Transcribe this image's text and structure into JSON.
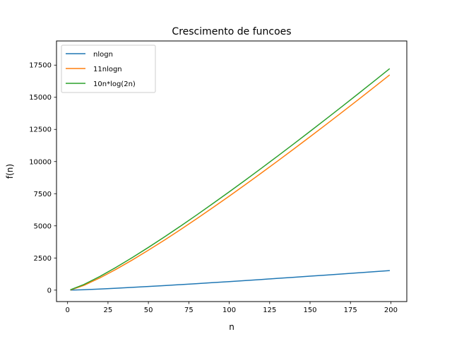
{
  "chart_data": {
    "type": "line",
    "title": "Crescimento de funcoes",
    "xlabel": "n",
    "ylabel": "f(n)",
    "xlim": [
      -6.85,
      209.85
    ],
    "ylim": [
      -890,
      19380
    ],
    "xticks": [
      0,
      25,
      50,
      75,
      100,
      125,
      150,
      175,
      200
    ],
    "yticks": [
      0,
      2500,
      5000,
      7500,
      10000,
      12500,
      15000,
      17500
    ],
    "grid": false,
    "legend_position": "top-left",
    "x": [
      2,
      10,
      20,
      30,
      40,
      50,
      60,
      70,
      80,
      90,
      100,
      110,
      120,
      130,
      140,
      150,
      160,
      170,
      180,
      190,
      199
    ],
    "series": [
      {
        "name": "nlogn",
        "color": "#1f77b4",
        "values": [
          2,
          33,
          86,
          147,
          213,
          282,
          354,
          429,
          506,
          584,
          664,
          746,
          829,
          913,
          998,
          1084,
          1171,
          1260,
          1349,
          1438,
          1520
        ]
      },
      {
        "name": "11nlogn",
        "color": "#ff7f0e",
        "values": [
          22,
          365,
          951,
          1619,
          2341,
          3104,
          3898,
          4719,
          5563,
          6427,
          7309,
          8207,
          9120,
          10045,
          10982,
          11930,
          12888,
          13856,
          14832,
          15818,
          16713
        ]
      },
      {
        "name": "10n*log(2n)",
        "color": "#2ca02c",
        "values": [
          40,
          432,
          1064,
          1772,
          2529,
          3322,
          4144,
          4990,
          5857,
          6743,
          7644,
          8560,
          9489,
          10430,
          11383,
          12347,
          13320,
          14303,
          15295,
          16295,
          17200
        ]
      }
    ]
  }
}
